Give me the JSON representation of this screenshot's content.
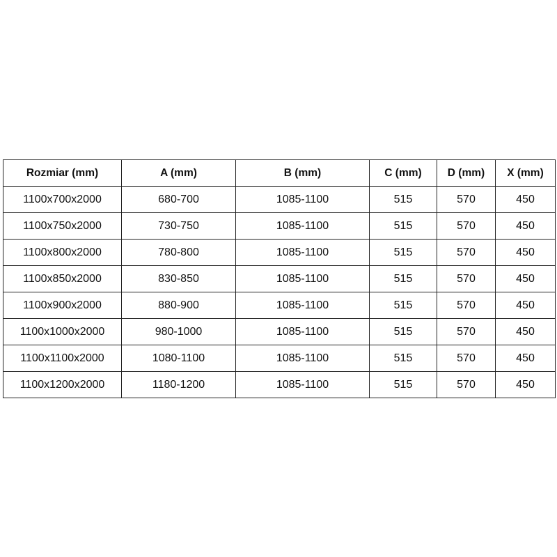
{
  "headers": [
    "Rozmiar (mm)",
    "A (mm)",
    "B (mm)",
    "C (mm)",
    "D (mm)",
    "X (mm)"
  ],
  "rows": [
    [
      "1100x700x2000",
      "680-700",
      "1085-1100",
      "515",
      "570",
      "450"
    ],
    [
      "1100x750x2000",
      "730-750",
      "1085-1100",
      "515",
      "570",
      "450"
    ],
    [
      "1100x800x2000",
      "780-800",
      "1085-1100",
      "515",
      "570",
      "450"
    ],
    [
      "1100x850x2000",
      "830-850",
      "1085-1100",
      "515",
      "570",
      "450"
    ],
    [
      "1100x900x2000",
      "880-900",
      "1085-1100",
      "515",
      "570",
      "450"
    ],
    [
      "1100x1000x2000",
      "980-1000",
      "1085-1100",
      "515",
      "570",
      "450"
    ],
    [
      "1100x1100x2000",
      "1080-1100",
      "1085-1100",
      "515",
      "570",
      "450"
    ],
    [
      "1100x1200x2000",
      "1180-1200",
      "1085-1100",
      "515",
      "570",
      "450"
    ]
  ]
}
